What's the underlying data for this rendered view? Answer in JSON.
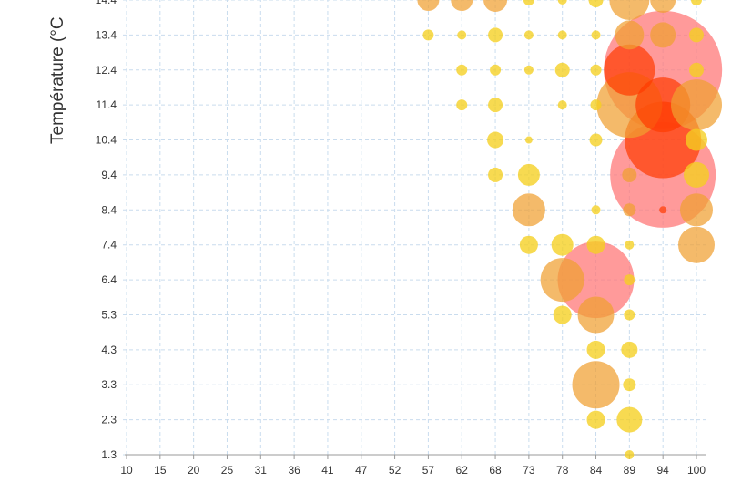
{
  "chart_data": {
    "type": "scatter",
    "subtype": "bubble",
    "ylabel": "Température (°C",
    "xlabel": "",
    "x_ticks": [
      "10",
      "15",
      "20",
      "25",
      "31",
      "36",
      "41",
      "47",
      "52",
      "57",
      "62",
      "68",
      "73",
      "78",
      "84",
      "89",
      "94",
      "100"
    ],
    "y_ticks": [
      "1.3",
      "2.3",
      "3.3",
      "4.3",
      "5.3",
      "6.4",
      "7.4",
      "8.4",
      "9.4",
      "10.4",
      "11.4",
      "12.4",
      "13.4",
      "14.4"
    ],
    "xlim": [
      10,
      100
    ],
    "ylim": [
      1.3,
      14.4
    ],
    "grid": true,
    "colors": {
      "low": "#f5d020",
      "mid": "#f0a030",
      "high": "#ff7878",
      "peak": "#ff3a00"
    },
    "points": [
      {
        "x": 57,
        "y": 14.4,
        "r": 12,
        "level": "mid"
      },
      {
        "x": 62,
        "y": 14.4,
        "r": 12,
        "level": "mid"
      },
      {
        "x": 68,
        "y": 14.4,
        "r": 13,
        "level": "mid"
      },
      {
        "x": 73,
        "y": 14.4,
        "r": 6,
        "level": "low"
      },
      {
        "x": 78,
        "y": 14.4,
        "r": 5,
        "level": "low"
      },
      {
        "x": 84,
        "y": 14.4,
        "r": 8,
        "level": "low"
      },
      {
        "x": 89,
        "y": 14.4,
        "r": 22,
        "level": "mid"
      },
      {
        "x": 94,
        "y": 14.4,
        "r": 14,
        "level": "mid"
      },
      {
        "x": 100,
        "y": 14.4,
        "r": 6,
        "level": "low"
      },
      {
        "x": 57,
        "y": 13.4,
        "r": 6,
        "level": "low"
      },
      {
        "x": 62,
        "y": 13.4,
        "r": 5,
        "level": "low"
      },
      {
        "x": 68,
        "y": 13.4,
        "r": 8,
        "level": "low"
      },
      {
        "x": 73,
        "y": 13.4,
        "r": 5,
        "level": "low"
      },
      {
        "x": 78,
        "y": 13.4,
        "r": 5,
        "level": "low"
      },
      {
        "x": 84,
        "y": 13.4,
        "r": 5,
        "level": "low"
      },
      {
        "x": 89,
        "y": 13.4,
        "r": 16,
        "level": "mid"
      },
      {
        "x": 94,
        "y": 13.4,
        "r": 14,
        "level": "mid"
      },
      {
        "x": 100,
        "y": 13.4,
        "r": 8,
        "level": "low"
      },
      {
        "x": 62,
        "y": 12.4,
        "r": 6,
        "level": "low"
      },
      {
        "x": 68,
        "y": 12.4,
        "r": 6,
        "level": "low"
      },
      {
        "x": 73,
        "y": 12.4,
        "r": 5,
        "level": "low"
      },
      {
        "x": 78,
        "y": 12.4,
        "r": 8,
        "level": "low"
      },
      {
        "x": 84,
        "y": 12.4,
        "r": 6,
        "level": "low"
      },
      {
        "x": 89,
        "y": 12.4,
        "r": 28,
        "level": "peak"
      },
      {
        "x": 94,
        "y": 12.4,
        "r": 65,
        "level": "high"
      },
      {
        "x": 100,
        "y": 12.4,
        "r": 8,
        "level": "low"
      },
      {
        "x": 62,
        "y": 11.4,
        "r": 6,
        "level": "low"
      },
      {
        "x": 68,
        "y": 11.4,
        "r": 8,
        "level": "low"
      },
      {
        "x": 78,
        "y": 11.4,
        "r": 5,
        "level": "low"
      },
      {
        "x": 84,
        "y": 11.4,
        "r": 6,
        "level": "low"
      },
      {
        "x": 89,
        "y": 11.4,
        "r": 36,
        "level": "mid"
      },
      {
        "x": 94,
        "y": 11.4,
        "r": 30,
        "level": "peak"
      },
      {
        "x": 100,
        "y": 11.4,
        "r": 28,
        "level": "mid"
      },
      {
        "x": 68,
        "y": 10.4,
        "r": 9,
        "level": "low"
      },
      {
        "x": 73,
        "y": 10.4,
        "r": 4,
        "level": "low"
      },
      {
        "x": 84,
        "y": 10.4,
        "r": 7,
        "level": "low"
      },
      {
        "x": 94,
        "y": 10.4,
        "r": 42,
        "level": "peak"
      },
      {
        "x": 100,
        "y": 10.4,
        "r": 12,
        "level": "low"
      },
      {
        "x": 68,
        "y": 9.4,
        "r": 8,
        "level": "low"
      },
      {
        "x": 73,
        "y": 9.4,
        "r": 12,
        "level": "low"
      },
      {
        "x": 89,
        "y": 9.4,
        "r": 8,
        "level": "mid"
      },
      {
        "x": 94,
        "y": 9.4,
        "r": 58,
        "level": "high"
      },
      {
        "x": 100,
        "y": 9.4,
        "r": 14,
        "level": "low"
      },
      {
        "x": 73,
        "y": 8.4,
        "r": 18,
        "level": "mid"
      },
      {
        "x": 84,
        "y": 8.4,
        "r": 5,
        "level": "low"
      },
      {
        "x": 89,
        "y": 8.4,
        "r": 7,
        "level": "mid"
      },
      {
        "x": 94,
        "y": 8.4,
        "r": 4,
        "level": "peak"
      },
      {
        "x": 100,
        "y": 8.4,
        "r": 18,
        "level": "mid"
      },
      {
        "x": 73,
        "y": 7.4,
        "r": 10,
        "level": "low"
      },
      {
        "x": 78,
        "y": 7.4,
        "r": 12,
        "level": "low"
      },
      {
        "x": 84,
        "y": 7.4,
        "r": 10,
        "level": "low"
      },
      {
        "x": 89,
        "y": 7.4,
        "r": 5,
        "level": "low"
      },
      {
        "x": 100,
        "y": 7.4,
        "r": 20,
        "level": "mid"
      },
      {
        "x": 78,
        "y": 6.4,
        "r": 24,
        "level": "mid"
      },
      {
        "x": 84,
        "y": 6.4,
        "r": 42,
        "level": "high"
      },
      {
        "x": 89,
        "y": 6.4,
        "r": 6,
        "level": "low"
      },
      {
        "x": 78,
        "y": 5.3,
        "r": 10,
        "level": "low"
      },
      {
        "x": 84,
        "y": 5.3,
        "r": 20,
        "level": "mid"
      },
      {
        "x": 89,
        "y": 5.3,
        "r": 6,
        "level": "low"
      },
      {
        "x": 84,
        "y": 4.3,
        "r": 10,
        "level": "low"
      },
      {
        "x": 89,
        "y": 4.3,
        "r": 9,
        "level": "low"
      },
      {
        "x": 84,
        "y": 3.3,
        "r": 26,
        "level": "mid"
      },
      {
        "x": 89,
        "y": 3.3,
        "r": 7,
        "level": "low"
      },
      {
        "x": 84,
        "y": 2.3,
        "r": 10,
        "level": "low"
      },
      {
        "x": 89,
        "y": 2.3,
        "r": 14,
        "level": "low"
      },
      {
        "x": 89,
        "y": 1.3,
        "r": 5,
        "level": "low"
      }
    ]
  }
}
